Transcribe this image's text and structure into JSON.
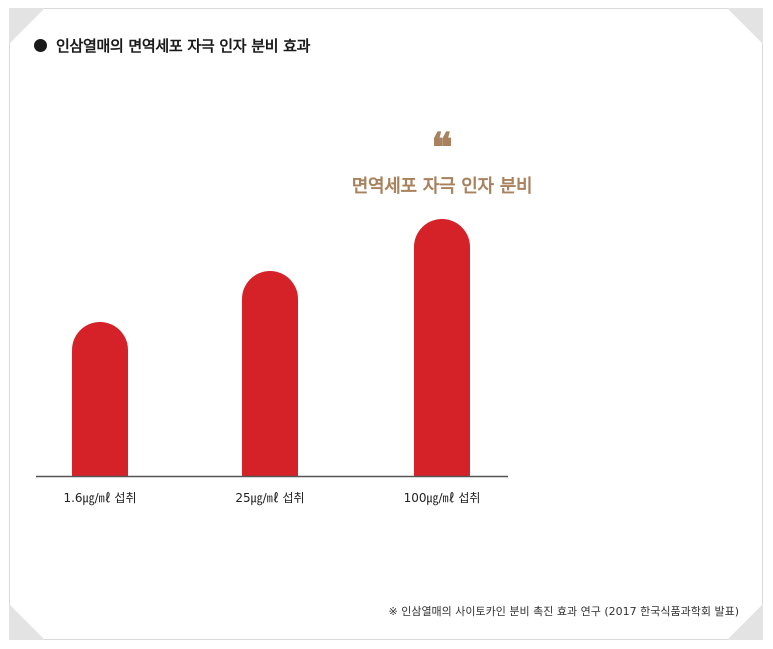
{
  "header": {
    "title": "인삼열매의 면역세포 자극 인자 분비 효과"
  },
  "highlight": {
    "quote_mark": "❝",
    "text": "면역세포 자극 인자 분비"
  },
  "chart_data": {
    "type": "bar",
    "categories": [
      "1.6㎍/㎖ 섭취",
      "25㎍/㎖ 섭취",
      "100㎍/㎖ 섭취"
    ],
    "values": [
      154,
      205,
      257
    ],
    "ylim": [
      0,
      260
    ],
    "grid": false,
    "bar_color": "#d52228",
    "axis_color": "#555555"
  },
  "footer": {
    "source": "※ 인삼열매의 사이토카인 분비 촉진 효과 연구 (2017 한국식품과학회 발표)"
  }
}
